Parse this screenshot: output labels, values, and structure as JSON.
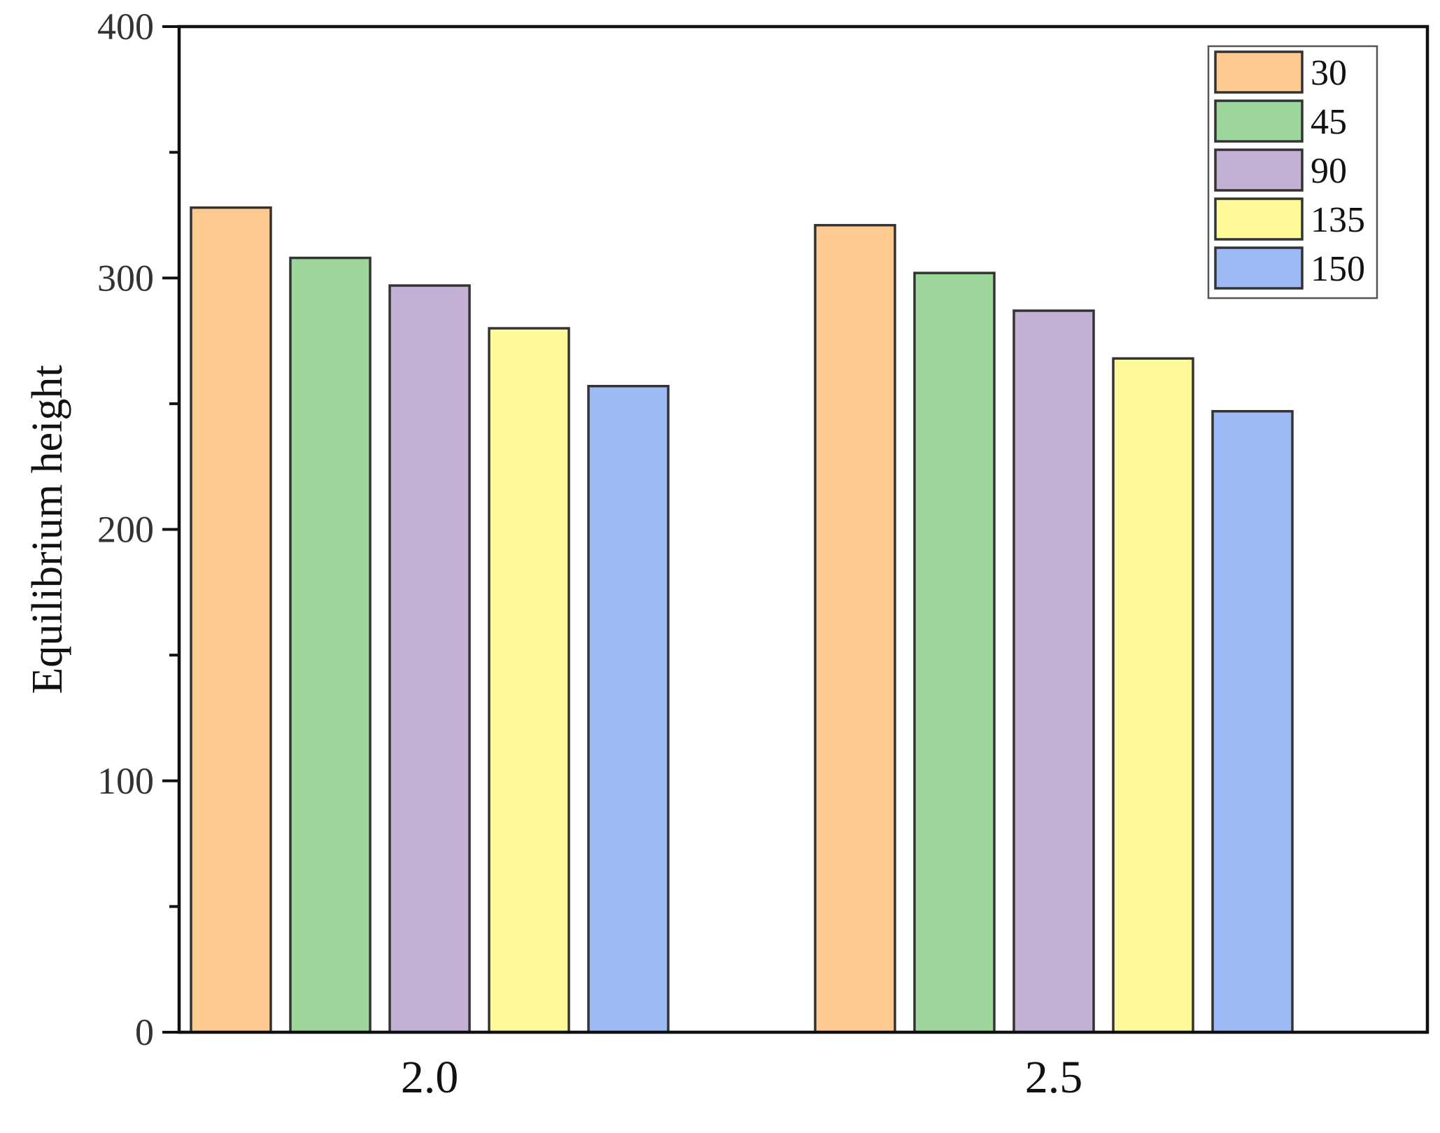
{
  "chart_data": {
    "type": "bar",
    "title": "",
    "xlabel": "",
    "ylabel": "Equilibrium height",
    "ylim": [
      0,
      400
    ],
    "yticks": [
      "0",
      "100",
      "200",
      "300",
      "400"
    ],
    "categories": [
      "2.0",
      "2.5"
    ],
    "series": [
      {
        "name": "30",
        "color": "#FFCA8F",
        "values": [
          328,
          321
        ]
      },
      {
        "name": "45",
        "color": "#9DD69A",
        "values": [
          308,
          302
        ]
      },
      {
        "name": "90",
        "color": "#C5B0D5",
        "values": [
          297,
          287
        ]
      },
      {
        "name": "135",
        "color": "#FFFA99",
        "values": [
          280,
          268
        ]
      },
      {
        "name": "150",
        "color": "#9DBAF5",
        "values": [
          257,
          247
        ]
      }
    ],
    "grid": false,
    "legend_position": "top-right"
  }
}
